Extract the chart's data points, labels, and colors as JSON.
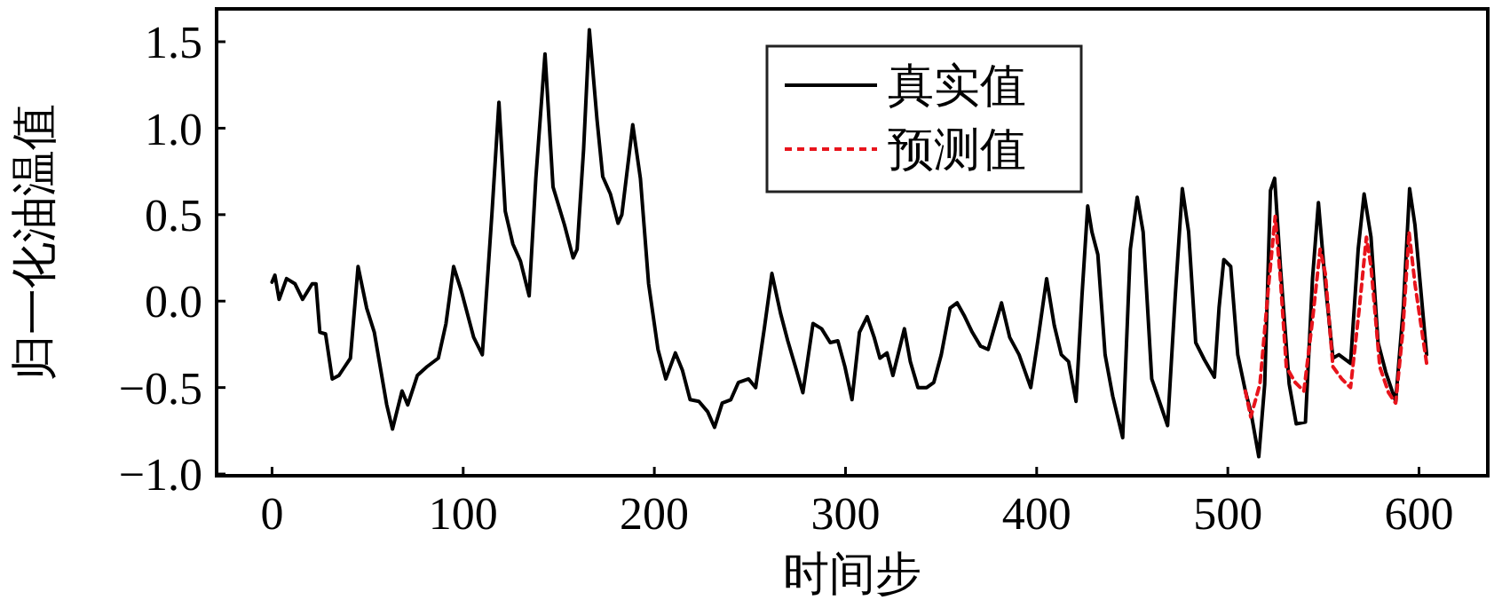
{
  "chart_data": {
    "type": "line",
    "xlabel": "时间步",
    "ylabel": "归一化油温值",
    "xlim": [
      -29,
      636
    ],
    "ylim": [
      -1.01,
      1.69
    ],
    "xticks": [
      0,
      100,
      200,
      300,
      400,
      500,
      600
    ],
    "yticks": [
      {
        "value": -1,
        "label": "−1.0"
      },
      {
        "value": -0.5,
        "label": "−0.5"
      },
      {
        "value": 0,
        "label": "0.0"
      },
      {
        "value": 0.5,
        "label": "0.5"
      },
      {
        "value": 1,
        "label": "1.0"
      },
      {
        "value": 1.5,
        "label": "1.5"
      }
    ],
    "grid": false,
    "legend": "top",
    "series": [
      {
        "name": "真实值",
        "color": "#000000",
        "line_style": "solid",
        "x": [
          0,
          1.5,
          3.7,
          7.6,
          12,
          16,
          21,
          23,
          25,
          28,
          31.5,
          35,
          38,
          41,
          45,
          49.5,
          53.5,
          60,
          63,
          68,
          71,
          76,
          81,
          87,
          91,
          95,
          99,
          105.5,
          110,
          115,
          118.7,
          122,
          126,
          130,
          134.5,
          138,
          142.8,
          147,
          153,
          157.5,
          159.6,
          163,
          166,
          170,
          173,
          177,
          181,
          183,
          188.7,
          192.7,
          197,
          201.9,
          206,
          211,
          214.7,
          218.7,
          223.3,
          227.9,
          231.5,
          235.5,
          240,
          244,
          249.3,
          253,
          257.5,
          261.5,
          266,
          269.8,
          273.8,
          277.7,
          283,
          287.5,
          292,
          296,
          299.7,
          303.4,
          307.3,
          311.3,
          315,
          318,
          321.7,
          324.8,
          330.8,
          333.9,
          337.9,
          342.5,
          346.2,
          350.1,
          354.7,
          358.4,
          362.4,
          366.3,
          370.6,
          374.6,
          381.6,
          385.9,
          390.8,
          396.9,
          400.6,
          405.2,
          409.2,
          412.9,
          416.7,
          420.6,
          423.7,
          426.7,
          428.9,
          432,
          435.8,
          439.8,
          445,
          449,
          452.6,
          455.7,
          460.2,
          468.5,
          472.5,
          476.2,
          479.5,
          483.2,
          487.8,
          493,
          495.4,
          497.9,
          501.5,
          505.2,
          509.2,
          512.2,
          516.2,
          519.3,
          522.3,
          524.5,
          527.5,
          532.1,
          535.8,
          540.6,
          544.3,
          547.4,
          551,
          555,
          558.1,
          564.2,
          568.2,
          571.3,
          574.9,
          578.6,
          582.6,
          587.8,
          591.8,
          595.1,
          597.9,
          604
        ],
        "values": [
          0.11,
          0.15,
          0.01,
          0.13,
          0.1,
          0.01,
          0.1,
          0.1,
          -0.18,
          -0.19,
          -0.45,
          -0.43,
          -0.38,
          -0.33,
          0.2,
          -0.04,
          -0.18,
          -0.6,
          -0.74,
          -0.52,
          -0.6,
          -0.43,
          -0.38,
          -0.33,
          -0.13,
          0.2,
          0.06,
          -0.21,
          -0.31,
          0.5,
          1.15,
          0.52,
          0.33,
          0.23,
          0.03,
          0.71,
          1.43,
          0.66,
          0.44,
          0.25,
          0.3,
          0.88,
          1.57,
          1.05,
          0.72,
          0.62,
          0.45,
          0.5,
          1.02,
          0.71,
          0.1,
          -0.28,
          -0.45,
          -0.3,
          -0.4,
          -0.57,
          -0.58,
          -0.64,
          -0.73,
          -0.59,
          -0.57,
          -0.47,
          -0.45,
          -0.5,
          -0.16,
          0.16,
          -0.07,
          -0.23,
          -0.38,
          -0.53,
          -0.13,
          -0.16,
          -0.24,
          -0.23,
          -0.38,
          -0.57,
          -0.18,
          -0.09,
          -0.21,
          -0.33,
          -0.3,
          -0.43,
          -0.16,
          -0.35,
          -0.5,
          -0.5,
          -0.47,
          -0.31,
          -0.04,
          -0.01,
          -0.09,
          -0.18,
          -0.26,
          -0.28,
          -0.01,
          -0.21,
          -0.31,
          -0.5,
          -0.23,
          0.13,
          -0.14,
          -0.31,
          -0.35,
          -0.58,
          0.03,
          0.55,
          0.4,
          0.27,
          -0.31,
          -0.55,
          -0.79,
          0.3,
          0.6,
          0.4,
          -0.45,
          -0.72,
          0.03,
          0.65,
          0.4,
          -0.24,
          -0.34,
          -0.44,
          -0.04,
          0.24,
          0.2,
          -0.31,
          -0.52,
          -0.65,
          -0.9,
          -0.48,
          0.64,
          0.71,
          0.2,
          -0.48,
          -0.71,
          -0.7,
          0.13,
          0.57,
          0.1,
          -0.33,
          -0.31,
          -0.36,
          0.3,
          0.62,
          0.37,
          -0.24,
          -0.41,
          -0.58,
          -0.04,
          0.65,
          0.44,
          -0.31
        ]
      },
      {
        "name": "预测值",
        "color": "#e8141c",
        "line_style": "dashed",
        "x": [
          509.2,
          512,
          516.8,
          521.4,
          524.8,
          527.5,
          530.6,
          535.2,
          539.8,
          544.3,
          548.3,
          551,
          555,
          559.6,
          564.2,
          568.8,
          572.5,
          574.9,
          579.5,
          584.1,
          587.8,
          591.5,
          594.8,
          597.9,
          604
        ],
        "values": [
          -0.52,
          -0.67,
          -0.48,
          0.1,
          0.49,
          0.13,
          -0.38,
          -0.47,
          -0.52,
          -0.11,
          0.3,
          0.16,
          -0.38,
          -0.45,
          -0.5,
          -0.04,
          0.37,
          0.2,
          -0.38,
          -0.53,
          -0.59,
          -0.18,
          0.4,
          0.1,
          -0.36
        ]
      }
    ]
  }
}
